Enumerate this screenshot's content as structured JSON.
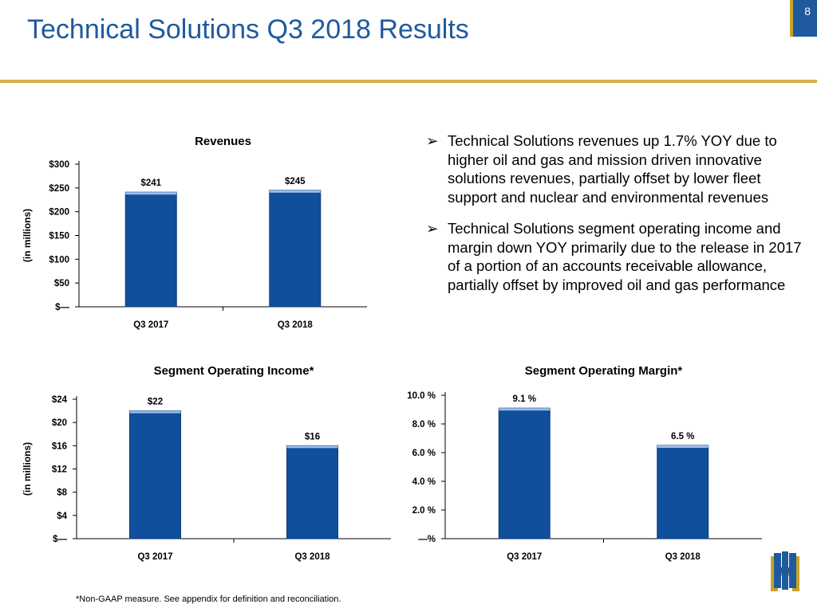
{
  "page": {
    "title": "Technical Solutions Q3 2018 Results",
    "page_number": "8",
    "footnote": "*Non-GAAP measure. See appendix for definition and reconciliation."
  },
  "bullets": [
    "Technical Solutions revenues up 1.7% YOY due to higher oil and gas and mission driven innovative solutions revenues, partially offset by lower fleet support and nuclear and environmental revenues",
    "Technical Solutions segment operating income and margin down YOY primarily due to the release in 2017 of a portion of an accounts receivable allowance, partially offset by improved oil and gas performance"
  ],
  "bullet_glyph": "➢",
  "colors": {
    "accent": "#1f5a9e",
    "bar": "#0f4f9b",
    "rule": "#d4b24a"
  },
  "logo": {
    "icon": "hii-logo-icon"
  },
  "chart_data": [
    {
      "type": "bar",
      "title": "Revenues",
      "ylabel": "(in millions)",
      "categories": [
        "Q3 2017",
        "Q3 2018"
      ],
      "values": [
        241,
        245
      ],
      "data_labels": [
        "$241",
        "$245"
      ],
      "yticks": [
        0,
        50,
        100,
        150,
        200,
        250,
        300
      ],
      "ytick_labels": [
        "$—",
        "$50",
        "$100",
        "$150",
        "$200",
        "$250",
        "$300"
      ],
      "ylim": [
        0,
        300
      ],
      "grid": false
    },
    {
      "type": "bar",
      "title": "Segment Operating Income*",
      "ylabel": "(in millions)",
      "categories": [
        "Q3 2017",
        "Q3 2018"
      ],
      "values": [
        22,
        16
      ],
      "data_labels": [
        "$22",
        "$16"
      ],
      "yticks": [
        0,
        4,
        8,
        12,
        16,
        20,
        24
      ],
      "ytick_labels": [
        "$—",
        "$4",
        "$8",
        "$12",
        "$16",
        "$20",
        "$24"
      ],
      "ylim": [
        0,
        24
      ],
      "grid": false
    },
    {
      "type": "bar",
      "title": "Segment Operating Margin*",
      "ylabel": "",
      "categories": [
        "Q3 2017",
        "Q3 2018"
      ],
      "values": [
        9.1,
        6.5
      ],
      "data_labels": [
        "9.1 %",
        "6.5 %"
      ],
      "yticks": [
        0,
        2,
        4,
        6,
        8,
        10
      ],
      "ytick_labels": [
        "—%",
        "2.0 %",
        "4.0 %",
        "6.0 %",
        "8.0 %",
        "10.0 %"
      ],
      "ylim": [
        0,
        10
      ],
      "grid": false
    }
  ]
}
